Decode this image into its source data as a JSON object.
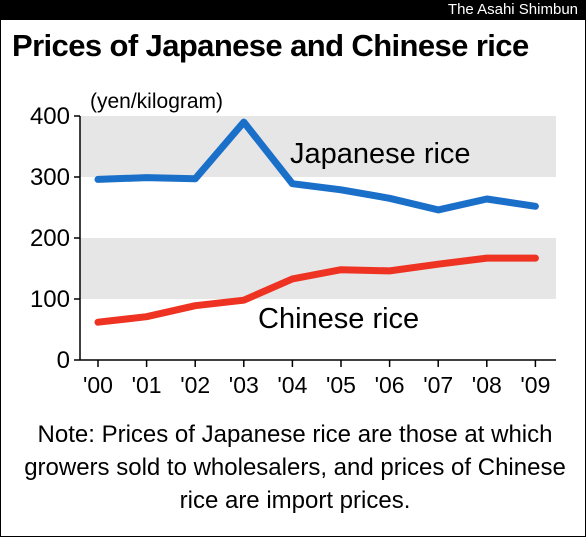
{
  "source": "The Asahi Shimbun",
  "title": "Prices of Japanese and Chinese rice",
  "note": "Note: Prices of Japanese rice are those at which growers sold to wholesalers, and prices of Chinese rice are import prices.",
  "colors": {
    "japanese": "#1a6fc9",
    "chinese": "#ee3322",
    "band": "#e6e6e6"
  },
  "chart_data": {
    "type": "line",
    "title": "Prices of Japanese and Chinese rice",
    "ylabel": "(yen/kilogram)",
    "xlabel": "",
    "ylim": [
      0,
      400
    ],
    "yticks": [
      0,
      100,
      200,
      300,
      400
    ],
    "grid": "alternating horizontal bands",
    "categories": [
      "'00",
      "'01",
      "'02",
      "'03",
      "'04",
      "'05",
      "'06",
      "'07",
      "'08",
      "'09"
    ],
    "series": [
      {
        "name": "Japanese rice",
        "values": [
          296,
          299,
          297,
          390,
          289,
          279,
          265,
          246,
          264,
          252
        ]
      },
      {
        "name": "Chinese rice",
        "values": [
          62,
          71,
          89,
          98,
          133,
          148,
          146,
          157,
          167,
          167
        ]
      }
    ]
  }
}
